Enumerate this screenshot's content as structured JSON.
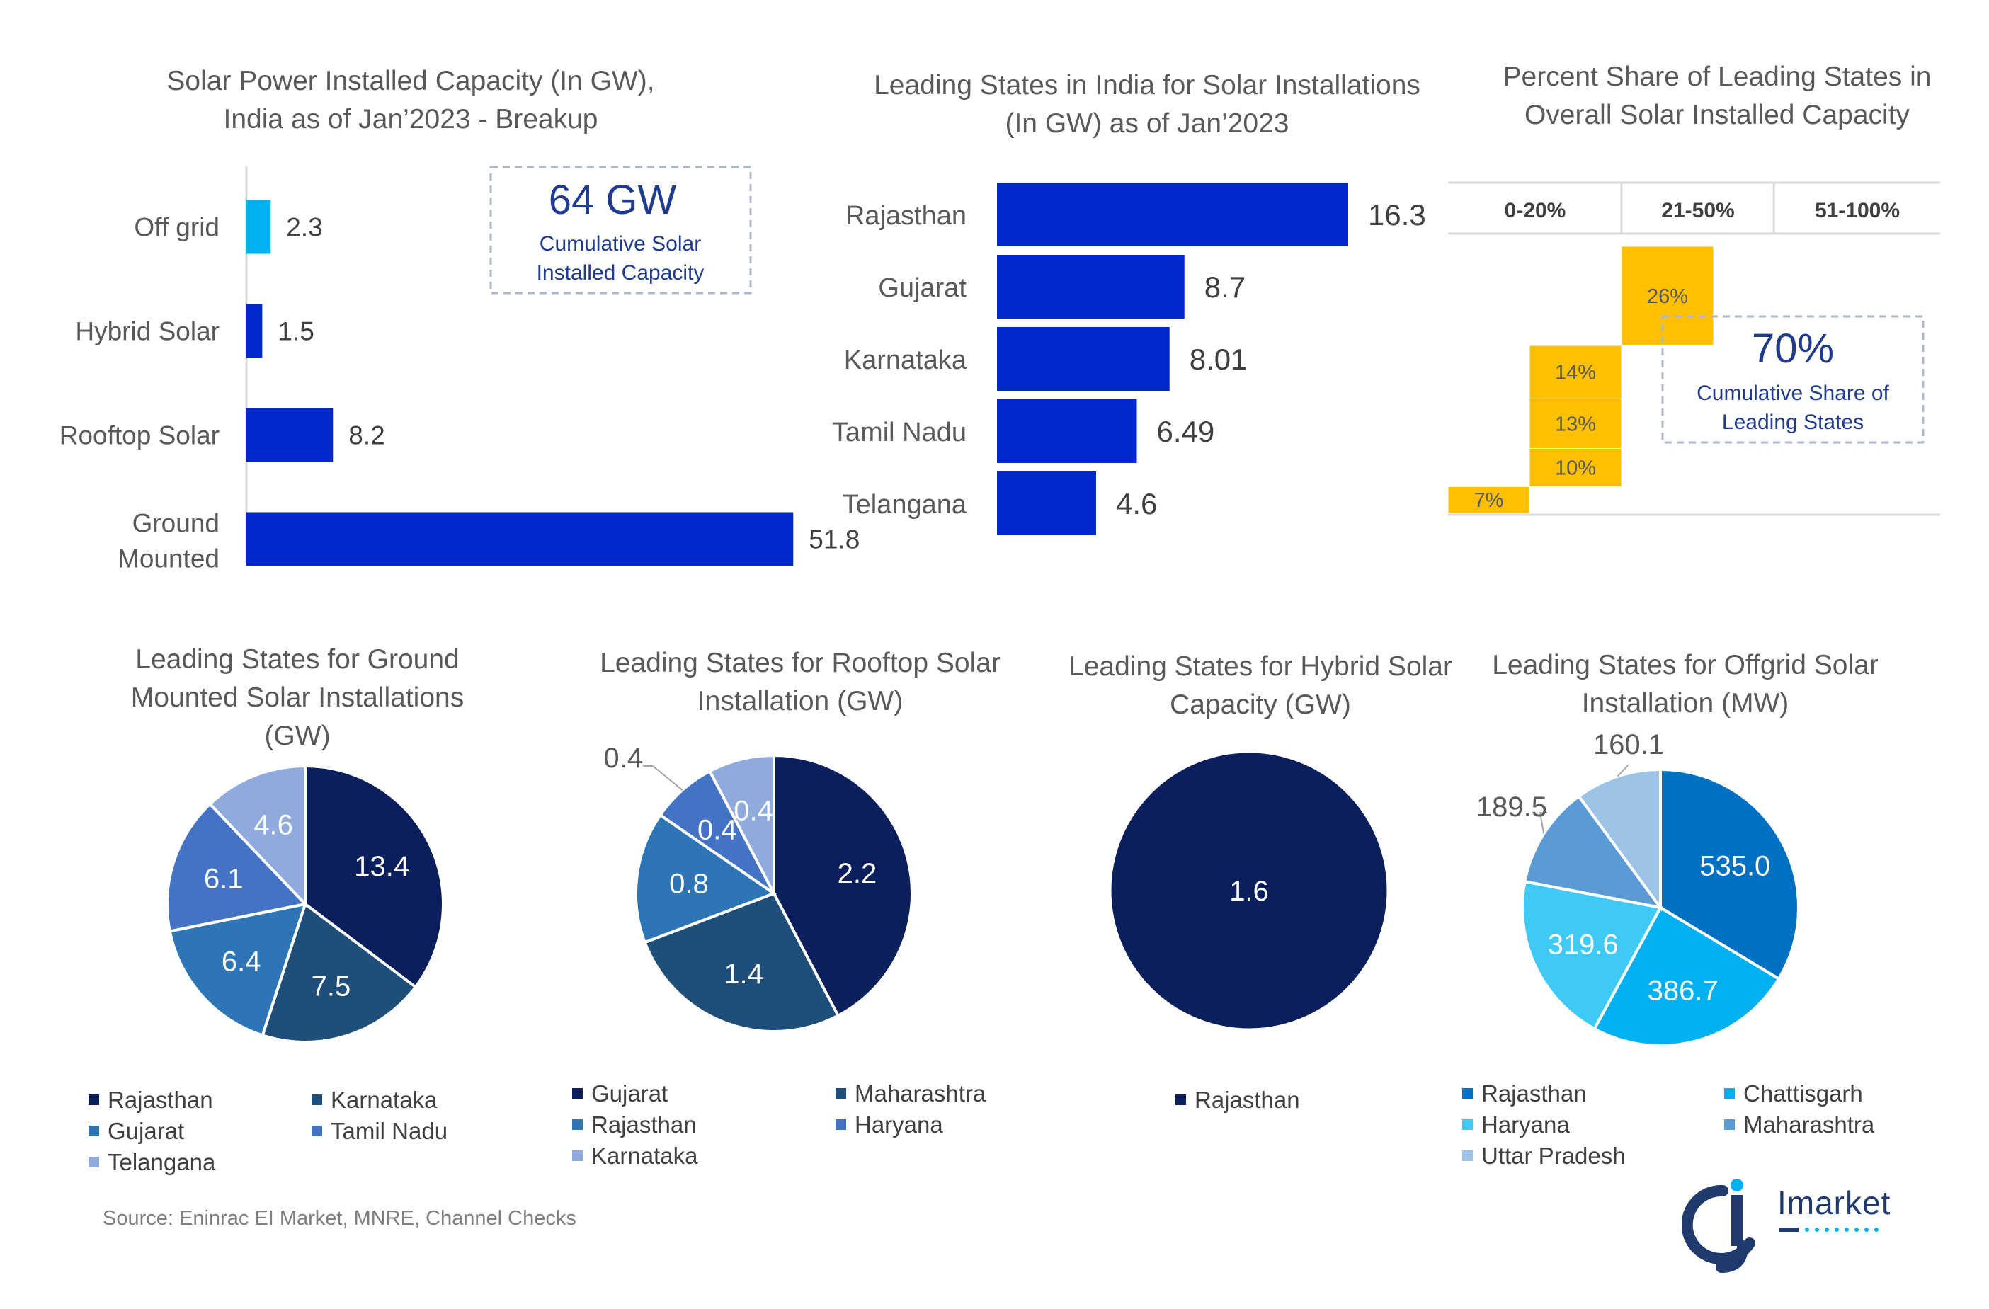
{
  "colors": {
    "navy": "#0b1f5c",
    "dark_blue": "#1f4e79",
    "mid_blue": "#2e75b6",
    "royal_blue": "#4472c4",
    "light_blue": "#8faadc",
    "bar_blue": "#0027cc",
    "cyan": "#00b0f0",
    "gold": "#ffc000",
    "title_text": "#595959",
    "callout_blue": "#1f3b8f"
  },
  "source": "Source: Eninrac EI Market, MNRE, Channel Checks",
  "logo": {
    "text": "Imarket"
  },
  "chart_data": [
    {
      "id": "breakup",
      "type": "bar",
      "orientation": "horizontal",
      "title": "Solar Power Installed Capacity (In GW), India as of Jan’2023 - Breakup",
      "categories": [
        "Off grid",
        "Hybrid Solar",
        "Rooftop Solar",
        "Ground Mounted"
      ],
      "values": [
        2.3,
        1.5,
        8.2,
        51.8
      ],
      "labels": [
        "2.3",
        "1.5",
        "8.2",
        "51.8"
      ],
      "bar_colors": [
        "#00b0f0",
        "#0027cc",
        "#0027cc",
        "#0027cc"
      ],
      "xlim": [
        0,
        55
      ],
      "callout": {
        "value": "64 GW",
        "label": "Cumulative Solar Installed Capacity"
      }
    },
    {
      "id": "leading_states",
      "type": "bar",
      "orientation": "horizontal",
      "title": "Leading States in India for Solar Installations (In GW) as of Jan’2023",
      "categories": [
        "Rajasthan",
        "Gujarat",
        "Karnataka",
        "Tamil Nadu",
        "Telangana"
      ],
      "values": [
        16.3,
        8.7,
        8.01,
        6.49,
        4.6
      ],
      "labels": [
        "16.3",
        "8.7",
        "8.01",
        "6.49",
        "4.6"
      ],
      "xlim": [
        0,
        17
      ]
    },
    {
      "id": "percent_share",
      "type": "bar",
      "subtype": "waterfall",
      "title": "Percent Share of Leading States in Overall Solar Installed Capacity",
      "bands": [
        "0-20%",
        "21-50%",
        "51-100%"
      ],
      "steps": [
        {
          "label": "7%",
          "value": 7
        },
        {
          "label": "10%",
          "value": 10
        },
        {
          "label": "13%",
          "value": 13
        },
        {
          "label": "14%",
          "value": 14
        },
        {
          "label": "26%",
          "value": 26
        }
      ],
      "ylim": [
        0,
        70
      ],
      "callout": {
        "value": "70%",
        "label": "Cumulative Share of Leading States"
      }
    },
    {
      "id": "ground_pie",
      "type": "pie",
      "title": "Leading States for Ground Mounted Solar Installations (GW)",
      "categories": [
        "Rajasthan",
        "Karnataka",
        "Gujarat",
        "Tamil Nadu",
        "Telangana"
      ],
      "values": [
        13.4,
        7.5,
        6.4,
        6.1,
        4.6
      ],
      "labels": [
        "13.4",
        "7.5",
        "6.4",
        "6.1",
        "4.6"
      ],
      "slice_colors": [
        "#0b1f5c",
        "#1f4e79",
        "#2e75b6",
        "#4472c4",
        "#8faadc"
      ]
    },
    {
      "id": "rooftop_pie",
      "type": "pie",
      "title": "Leading States for Rooftop Solar Installation (GW)",
      "categories": [
        "Gujarat",
        "Maharashtra",
        "Rajasthan",
        "Haryana",
        "Karnataka"
      ],
      "values": [
        2.2,
        1.4,
        0.8,
        0.4,
        0.4
      ],
      "labels": [
        "2.2",
        "1.4",
        "0.8",
        "0.4",
        "0.4"
      ],
      "slice_colors": [
        "#0b1f5c",
        "#1f4e79",
        "#2e75b6",
        "#4472c4",
        "#8faadc"
      ]
    },
    {
      "id": "hybrid_pie",
      "type": "pie",
      "title": "Leading States for Hybrid Solar Capacity (GW)",
      "categories": [
        "Rajasthan"
      ],
      "values": [
        1.6
      ],
      "labels": [
        "1.6"
      ],
      "slice_colors": [
        "#0b1f5c"
      ]
    },
    {
      "id": "offgrid_pie",
      "type": "pie",
      "title": "Leading States for Offgrid Solar Installation (MW)",
      "categories": [
        "Rajasthan",
        "Chattisgarh",
        "Haryana",
        "Maharashtra",
        "Uttar Pradesh"
      ],
      "values": [
        535.0,
        386.7,
        319.6,
        189.5,
        160.1
      ],
      "labels": [
        "535.0",
        "386.7",
        "319.6",
        "189.5",
        "160.1"
      ],
      "slice_colors": [
        "#0070c0",
        "#00b0f0",
        "#3fcaf5",
        "#5b9bd5",
        "#9dc3e6"
      ]
    }
  ]
}
